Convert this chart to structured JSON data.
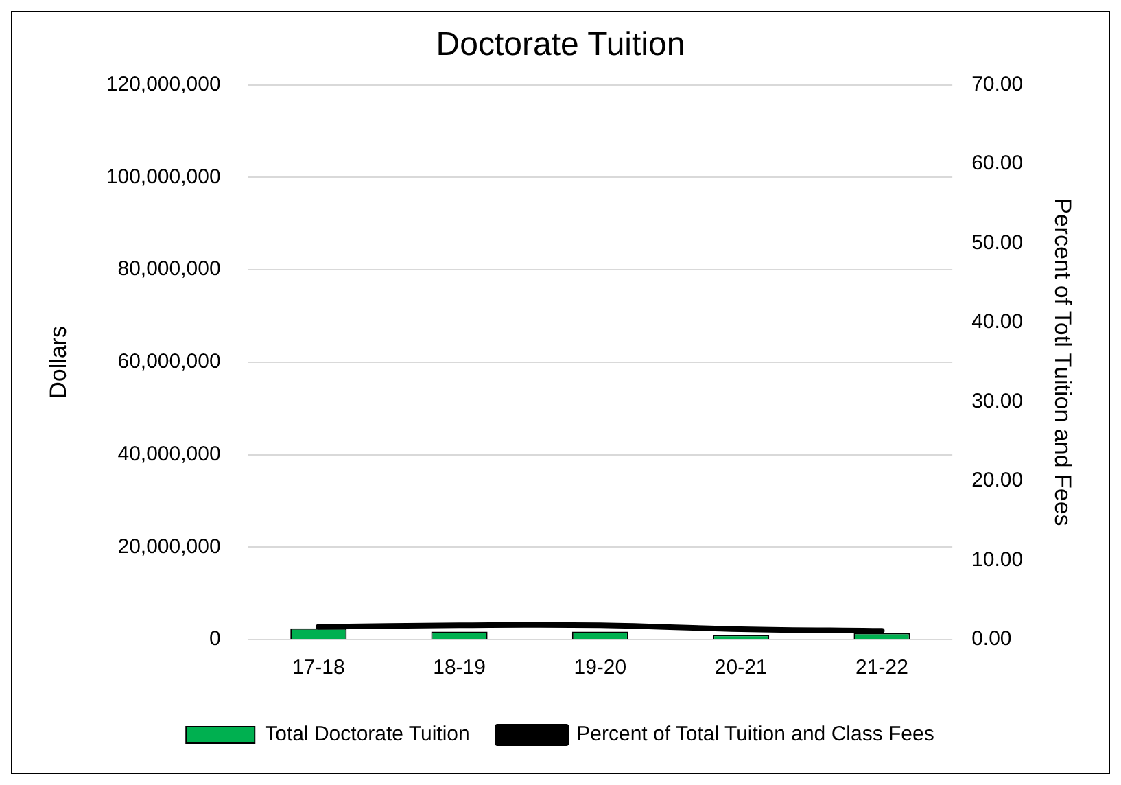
{
  "chart_data": {
    "type": "bar",
    "title": "Doctorate Tuition",
    "ylabel": "Dollars",
    "y2label": "Percent of Totl Tuition and Fees",
    "categories": [
      "17-18",
      "18-19",
      "19-20",
      "20-21",
      "21-22"
    ],
    "series": [
      {
        "name": "Total Doctorate Tuition",
        "color": "#00b050",
        "values": [
          2400000,
          1700000,
          1700000,
          1000000,
          1400000
        ]
      },
      {
        "name": "Percent of Total Tuition and Class Fees",
        "type": "line",
        "axis": "y2",
        "color": "#000000",
        "values": [
          1.6,
          1.8,
          1.8,
          1.3,
          1.1
        ]
      }
    ],
    "ylim": [
      0,
      120000000
    ],
    "yticks": [
      {
        "value": 0,
        "label": "0"
      },
      {
        "value": 20000000,
        "label": "20,000,000"
      },
      {
        "value": 40000000,
        "label": "40,000,000"
      },
      {
        "value": 60000000,
        "label": "60,000,000"
      },
      {
        "value": 80000000,
        "label": "80,000,000"
      },
      {
        "value": 100000000,
        "label": "100,000,000"
      },
      {
        "value": 120000000,
        "label": "120,000,000"
      }
    ],
    "y2lim": [
      0,
      70
    ],
    "y2ticks": [
      {
        "value": 0,
        "label": "0.00"
      },
      {
        "value": 10,
        "label": "10.00"
      },
      {
        "value": 20,
        "label": "20.00"
      },
      {
        "value": 30,
        "label": "30.00"
      },
      {
        "value": 40,
        "label": "40.00"
      },
      {
        "value": 50,
        "label": "50.00"
      },
      {
        "value": 60,
        "label": "60.00"
      },
      {
        "value": 70,
        "label": "70.00"
      }
    ],
    "grid": "y",
    "legend": "bottom",
    "marker": "none",
    "line_style": "solid"
  }
}
